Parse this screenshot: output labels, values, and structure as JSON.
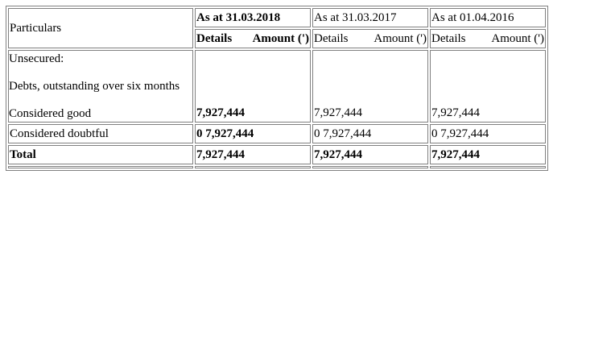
{
  "table": {
    "header": {
      "particulars": "Particulars",
      "periods": [
        "As at 31.03.2018",
        "As at 31.03.2017",
        "As at 01.04.2016"
      ],
      "details_label": "Details",
      "amount_label": "Amount (')"
    },
    "unsecured_label": "Unsecured:",
    "debts_label": "Debts, outstanding over six months",
    "rows": [
      {
        "label": "Considered good",
        "values": [
          "7,927,444",
          "7,927,444",
          "7,927,444"
        ]
      },
      {
        "label": "Considered doubtful",
        "values": [
          "0 7,927,444",
          "0 7,927,444",
          "0 7,927,444"
        ]
      },
      {
        "label": "Total",
        "values": [
          "7,927,444",
          "7,927,444",
          "7,927,444"
        ]
      }
    ]
  }
}
